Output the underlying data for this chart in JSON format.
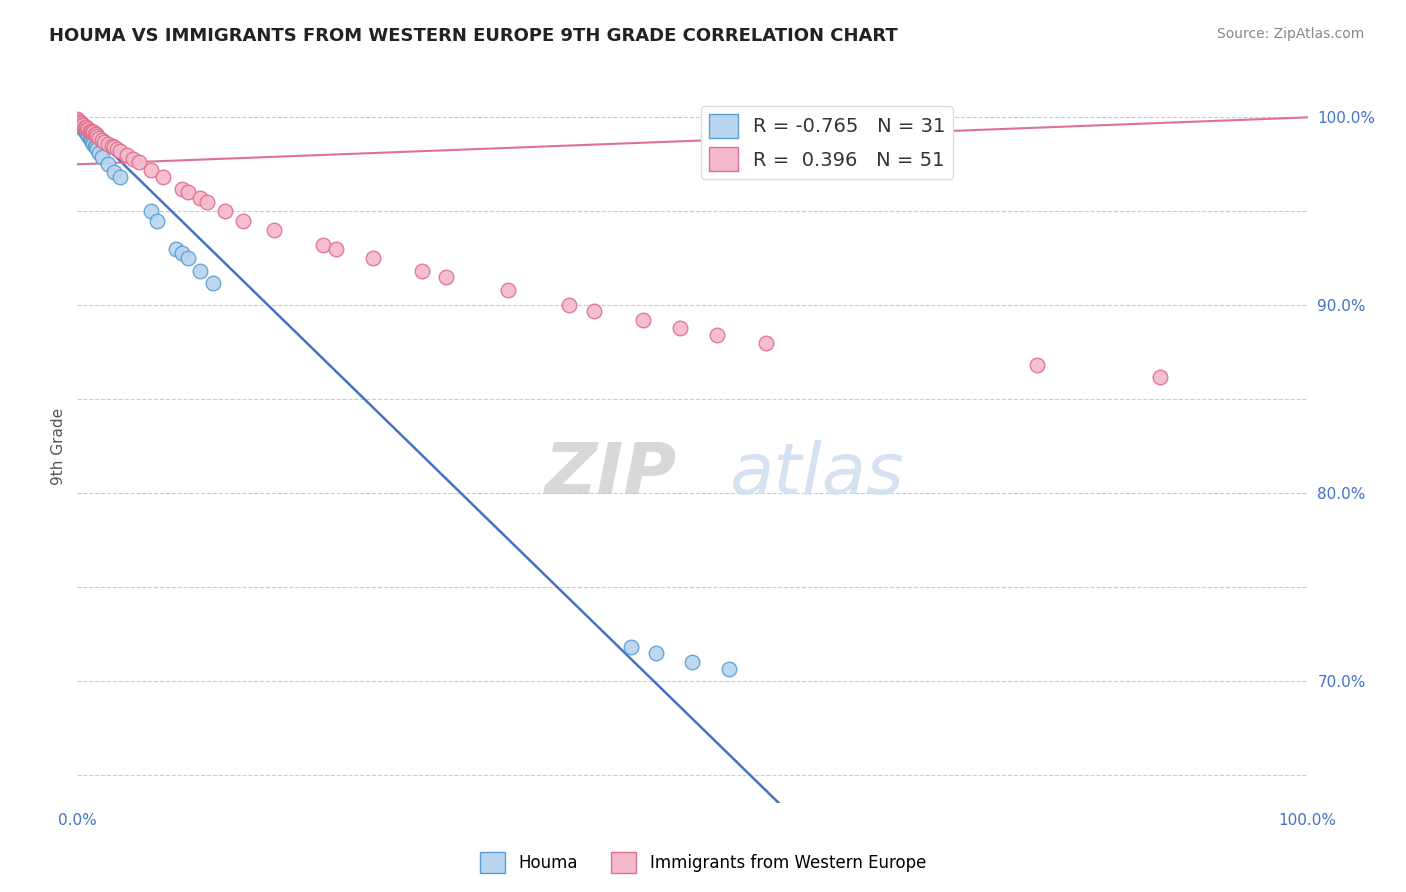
{
  "title": "HOUMA VS IMMIGRANTS FROM WESTERN EUROPE 9TH GRADE CORRELATION CHART",
  "source": "Source: ZipAtlas.com",
  "ylabel": "9th Grade",
  "xlim": [
    0.0,
    1.0
  ],
  "ylim": [
    0.635,
    1.015
  ],
  "right_yticks": [
    0.7,
    0.8,
    0.9,
    1.0
  ],
  "right_yticklabels": [
    "70.0%",
    "80.0%",
    "90.0%",
    "100.0%"
  ],
  "xticks": [
    0.0,
    0.2,
    0.4,
    0.6,
    0.8,
    1.0
  ],
  "xticklabels": [
    "0.0%",
    "",
    "",
    "",
    "",
    "100.0%"
  ],
  "blue_r": -0.765,
  "blue_n": 31,
  "pink_r": 0.396,
  "pink_n": 51,
  "blue_label": "Houma",
  "pink_label": "Immigrants from Western Europe",
  "blue_color": "#b8d4ee",
  "blue_edge_color": "#5a9fd4",
  "pink_color": "#f4b8cc",
  "pink_edge_color": "#e0708a",
  "blue_line_color": "#4472c4",
  "pink_line_color": "#e07090",
  "title_color": "#222222",
  "source_color": "#888888",
  "axis_label_color": "#555555",
  "tick_color": "#4472c4",
  "grid_color": "#cccccc",
  "watermark_color": "#d0dff0",
  "blue_dots_x": [
    0.002,
    0.003,
    0.004,
    0.005,
    0.006,
    0.007,
    0.008,
    0.009,
    0.01,
    0.011,
    0.012,
    0.013,
    0.014,
    0.015,
    0.016,
    0.018,
    0.02,
    0.025,
    0.03,
    0.035,
    0.06,
    0.065,
    0.08,
    0.085,
    0.09,
    0.1,
    0.11,
    0.45,
    0.47,
    0.5,
    0.53
  ],
  "blue_dots_y": [
    0.997,
    0.996,
    0.995,
    0.994,
    0.993,
    0.992,
    0.991,
    0.99,
    0.989,
    0.988,
    0.987,
    0.986,
    0.985,
    0.984,
    0.983,
    0.981,
    0.979,
    0.975,
    0.971,
    0.968,
    0.95,
    0.945,
    0.93,
    0.928,
    0.925,
    0.918,
    0.912,
    0.718,
    0.715,
    0.71,
    0.706
  ],
  "pink_dots_x": [
    0.0,
    0.001,
    0.002,
    0.003,
    0.004,
    0.005,
    0.006,
    0.007,
    0.008,
    0.009,
    0.01,
    0.011,
    0.012,
    0.013,
    0.014,
    0.015,
    0.016,
    0.018,
    0.02,
    0.022,
    0.025,
    0.028,
    0.03,
    0.032,
    0.035,
    0.04,
    0.045,
    0.05,
    0.06,
    0.07,
    0.085,
    0.09,
    0.1,
    0.105,
    0.12,
    0.135,
    0.16,
    0.2,
    0.21,
    0.24,
    0.28,
    0.3,
    0.35,
    0.4,
    0.42,
    0.46,
    0.49,
    0.52,
    0.56,
    0.78,
    0.88
  ],
  "pink_dots_y": [
    0.999,
    0.998,
    0.997,
    0.997,
    0.996,
    0.996,
    0.995,
    0.995,
    0.994,
    0.994,
    0.993,
    0.993,
    0.992,
    0.992,
    0.991,
    0.991,
    0.99,
    0.989,
    0.988,
    0.987,
    0.986,
    0.985,
    0.984,
    0.983,
    0.982,
    0.98,
    0.978,
    0.976,
    0.972,
    0.968,
    0.962,
    0.96,
    0.957,
    0.955,
    0.95,
    0.945,
    0.94,
    0.932,
    0.93,
    0.925,
    0.918,
    0.915,
    0.908,
    0.9,
    0.897,
    0.892,
    0.888,
    0.884,
    0.88,
    0.868,
    0.862
  ],
  "blue_line_x": [
    0.0,
    0.57
  ],
  "blue_line_y": [
    0.999,
    0.635
  ],
  "pink_line_x": [
    0.0,
    1.0
  ],
  "pink_line_y": [
    0.975,
    1.0
  ]
}
